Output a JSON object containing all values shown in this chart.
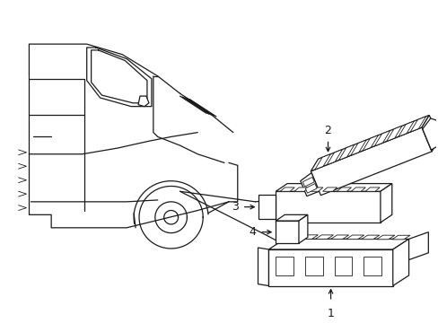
{
  "bg_color": "#ffffff",
  "line_color": "#1a1a1a",
  "line_width": 0.9,
  "thin_lw": 0.6,
  "label_fontsize": 9,
  "figsize": [
    4.89,
    3.6
  ],
  "dpi": 100
}
